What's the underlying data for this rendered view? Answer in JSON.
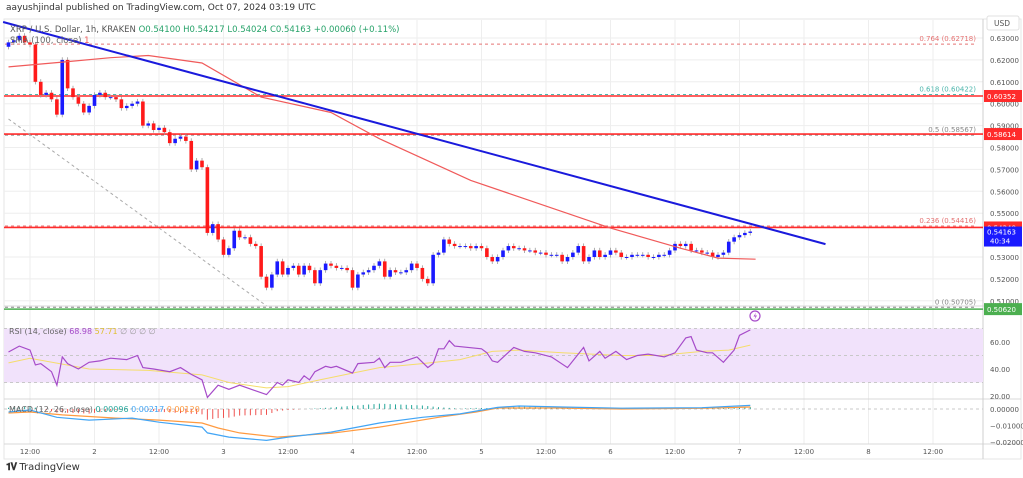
{
  "header": "aayushjindal published on TradingView.com, Oct 07, 2024 03:19 UTC",
  "legend": {
    "symbol": "XRP / U.S. Dollar, 1h, KRAKEN",
    "open": "O0.54100",
    "high": "H0.54217",
    "low": "L0.54024",
    "close": "C0.54163",
    "change": "+0.00060 (+0.11%)",
    "sma_label": "SMA (100, close)",
    "sma_flag": "1"
  },
  "rsi_legend": {
    "label": "RSI (14, close)",
    "rsi": "68.98",
    "ma": "57.71",
    "extra": "∅ ∅ ∅ ∅"
  },
  "macd_legend": {
    "label": "MACD (12, 26, close)",
    "hist": "0.00096",
    "macd": "0.00217",
    "signal": "0.00120"
  },
  "footer": {
    "brand": "TradingView",
    "logo_icon": "tradingview-logo-icon"
  },
  "colors": {
    "up": "#1a1aff",
    "down": "#ff1a1a",
    "sma": "#f05a5a",
    "trendline": "#1a1adc",
    "rsi": "#a64bc9",
    "rsi_ma": "#f5dd6b",
    "macd": "#42a5f5",
    "signal": "#ff9a40",
    "hist_pos": "#26a69a",
    "hist_neg": "#ef5350",
    "band": "#f1e2fb"
  },
  "chart_data": [
    {
      "type": "candlestick",
      "title": "XRP / U.S. Dollar, 1h, KRAKEN",
      "ylabel": "USD",
      "ylim": [
        0.5,
        0.635
      ],
      "interval": "1h",
      "first_candle": "Oct 1 08:00",
      "first_open": 0.626,
      "closes": [
        0.628,
        0.629,
        0.631,
        0.628,
        0.627,
        0.61,
        0.604,
        0.605,
        0.602,
        0.595,
        0.62,
        0.607,
        0.603,
        0.6,
        0.596,
        0.599,
        0.604,
        0.605,
        0.603,
        0.603,
        0.602,
        0.598,
        0.599,
        0.6,
        0.601,
        0.59,
        0.591,
        0.588,
        0.589,
        0.587,
        0.582,
        0.584,
        0.585,
        0.583,
        0.57,
        0.574,
        0.571,
        0.541,
        0.545,
        0.538,
        0.531,
        0.534,
        0.542,
        0.539,
        0.539,
        0.536,
        0.535,
        0.521,
        0.516,
        0.522,
        0.528,
        0.522,
        0.525,
        0.526,
        0.522,
        0.526,
        0.524,
        0.518,
        0.524,
        0.527,
        0.526,
        0.525,
        0.525,
        0.524,
        0.516,
        0.522,
        0.523,
        0.524,
        0.526,
        0.528,
        0.521,
        0.524,
        0.523,
        0.523,
        0.524,
        0.527,
        0.525,
        0.52,
        0.518,
        0.531,
        0.532,
        0.538,
        0.536,
        0.535,
        0.535,
        0.535,
        0.534,
        0.535,
        0.534,
        0.53,
        0.528,
        0.53,
        0.533,
        0.535,
        0.534,
        0.534,
        0.533,
        0.533,
        0.532,
        0.532,
        0.531,
        0.531,
        0.531,
        0.528,
        0.53,
        0.532,
        0.535,
        0.528,
        0.53,
        0.533,
        0.53,
        0.531,
        0.533,
        0.532,
        0.53,
        0.53,
        0.531,
        0.531,
        0.531,
        0.53,
        0.53,
        0.531,
        0.531,
        0.533,
        0.536,
        0.535,
        0.536,
        0.533,
        0.533,
        0.532,
        0.532,
        0.53,
        0.531,
        0.532,
        0.537,
        0.539,
        0.54,
        0.541,
        0.54163
      ],
      "sma100": [
        [
          "Oct 1 08:00",
          0.6168
        ],
        [
          "Oct 1 18:00",
          0.619
        ],
        [
          "Oct 2 03:00",
          0.621
        ],
        [
          "Oct 2 10:00",
          0.622
        ],
        [
          "Oct 2 20:00",
          0.6186
        ],
        [
          "Oct 3 07:00",
          0.603
        ],
        [
          "Oct 3 20:00",
          0.596
        ],
        [
          "Oct 4 05:00",
          0.584
        ],
        [
          "Oct 4 22:00",
          0.565
        ],
        [
          "Oct 6 00:00",
          0.5432
        ],
        [
          "Oct 6 13:00",
          0.534
        ],
        [
          "Oct 6 20:00",
          0.5295
        ],
        [
          "Oct 7 03:00",
          0.529
        ]
      ],
      "trendline": [
        [
          "Oct 1 07:00",
          0.6373
        ],
        [
          "Oct 7 16:00",
          0.5359
        ]
      ],
      "fib_anchor_line": [
        [
          "Oct 1 08:00",
          0.593
        ],
        [
          "Oct 3 08:00",
          0.5077
        ]
      ],
      "fib_levels": [
        {
          "label": "0.764 (0.62718)",
          "price": 0.62718,
          "color": "#e57373"
        },
        {
          "label": "0.618 (0.60422)",
          "price": 0.60422,
          "color": "#4db6ac"
        },
        {
          "label": "0.5 (0.58567)",
          "price": 0.58567,
          "color": "#888888"
        },
        {
          "label": "0.236 (0.54416)",
          "price": 0.54416,
          "color": "#e57373"
        },
        {
          "label": "0 (0.50705)",
          "price": 0.50705,
          "color": "#888888"
        }
      ],
      "horizontal_levels": [
        {
          "label": "0.60352",
          "price": 0.60352,
          "color": "#ff2b2b"
        },
        {
          "label": "0.58614",
          "price": 0.58614,
          "color": "#ff2b2b"
        },
        {
          "label": "0.54348",
          "price": 0.54348,
          "color": "#ff2b2b"
        },
        {
          "label": "0.50620",
          "price": 0.5062,
          "color": "#4caf50"
        }
      ],
      "last_price": {
        "label": "0.54163",
        "countdown": "40:34",
        "price": 0.54163,
        "color": "#1a1aff"
      },
      "y_ticks": [
        "0.63000",
        "0.62000",
        "0.61000",
        "0.60000",
        "0.59000",
        "0.58000",
        "0.57000",
        "0.56000",
        "0.55000",
        "0.53000",
        "0.52000",
        "0.51000"
      ],
      "x_ticks": [
        {
          "label": "12:00",
          "t": "Oct 1 12:00"
        },
        {
          "label": "2",
          "t": "Oct 2 00:00"
        },
        {
          "label": "12:00",
          "t": "Oct 2 12:00"
        },
        {
          "label": "3",
          "t": "Oct 3 00:00"
        },
        {
          "label": "12:00",
          "t": "Oct 3 12:00"
        },
        {
          "label": "4",
          "t": "Oct 4 00:00"
        },
        {
          "label": "12:00",
          "t": "Oct 4 12:00"
        },
        {
          "label": "5",
          "t": "Oct 5 00:00"
        },
        {
          "label": "12:00",
          "t": "Oct 5 12:00"
        },
        {
          "label": "6",
          "t": "Oct 6 00:00"
        },
        {
          "label": "12:00",
          "t": "Oct 6 12:00"
        },
        {
          "label": "7",
          "t": "Oct 7 00:00"
        },
        {
          "label": "12:00",
          "t": "Oct 7 12:00"
        },
        {
          "label": "8",
          "t": "Oct 8 00:00"
        },
        {
          "label": "12:00",
          "t": "Oct 8 12:00"
        }
      ]
    },
    {
      "type": "line",
      "title": "RSI (14, close)",
      "ylim": [
        20,
        75
      ],
      "y_ticks": [
        "60.00",
        "40.00",
        "20.00"
      ],
      "band": [
        30,
        70
      ],
      "rsi": [
        [
          "Oct 1 08:00",
          52.6
        ],
        [
          "Oct 1 10:00",
          57
        ],
        [
          "Oct 1 12:00",
          54
        ],
        [
          "Oct 1 13:00",
          43
        ],
        [
          "Oct 1 14:00",
          44
        ],
        [
          "Oct 1 16:00",
          38
        ],
        [
          "Oct 1 17:00",
          28
        ],
        [
          "Oct 1 18:00",
          49
        ],
        [
          "Oct 1 19:00",
          44
        ],
        [
          "Oct 1 21:00",
          40
        ],
        [
          "Oct 1 23:00",
          45
        ],
        [
          "Oct 2 01:00",
          46
        ],
        [
          "Oct 2 03:00",
          48
        ],
        [
          "Oct 2 06:00",
          47
        ],
        [
          "Oct 2 08:00",
          50
        ],
        [
          "Oct 2 09:00",
          41
        ],
        [
          "Oct 2 11:00",
          40
        ],
        [
          "Oct 2 14:00",
          38
        ],
        [
          "Oct 2 16:00",
          41
        ],
        [
          "Oct 2 18:00",
          36
        ],
        [
          "Oct 2 20:00",
          32
        ],
        [
          "Oct 2 21:00",
          19
        ],
        [
          "Oct 2 23:00",
          28
        ],
        [
          "Oct 3 01:00",
          25
        ],
        [
          "Oct 3 03:00",
          28
        ],
        [
          "Oct 3 08:00",
          21
        ],
        [
          "Oct 3 10:00",
          30
        ],
        [
          "Oct 3 11:00",
          28
        ],
        [
          "Oct 3 12:00",
          32
        ],
        [
          "Oct 3 14:00",
          30
        ],
        [
          "Oct 3 15:00",
          35
        ],
        [
          "Oct 3 16:00",
          32
        ],
        [
          "Oct 3 17:00",
          38
        ],
        [
          "Oct 3 19:00",
          42
        ],
        [
          "Oct 3 20:00",
          41
        ],
        [
          "Oct 3 21:00",
          42
        ],
        [
          "Oct 4 00:00",
          37
        ],
        [
          "Oct 4 01:00",
          44
        ],
        [
          "Oct 4 04:00",
          45
        ],
        [
          "Oct 4 05:00",
          48
        ],
        [
          "Oct 4 06:00",
          41
        ],
        [
          "Oct 4 07:00",
          45
        ],
        [
          "Oct 4 09:00",
          45
        ],
        [
          "Oct 4 12:00",
          49
        ],
        [
          "Oct 4 14:00",
          41
        ],
        [
          "Oct 4 15:00",
          44
        ],
        [
          "Oct 4 16:00",
          55
        ],
        [
          "Oct 4 17:00",
          55
        ],
        [
          "Oct 4 18:00",
          61
        ],
        [
          "Oct 4 19:00",
          57
        ],
        [
          "Oct 5 00:00",
          55
        ],
        [
          "Oct 5 01:00",
          52
        ],
        [
          "Oct 5 02:00",
          46
        ],
        [
          "Oct 5 03:00",
          45
        ],
        [
          "Oct 5 06:00",
          56
        ],
        [
          "Oct 5 08:00",
          53
        ],
        [
          "Oct 5 10:00",
          52
        ],
        [
          "Oct 5 13:00",
          49
        ],
        [
          "Oct 5 16:00",
          41
        ],
        [
          "Oct 5 19:00",
          56
        ],
        [
          "Oct 5 20:00",
          46
        ],
        [
          "Oct 5 22:00",
          53
        ],
        [
          "Oct 5 23:00",
          48
        ],
        [
          "Oct 6 01:00",
          53
        ],
        [
          "Oct 6 03:00",
          47
        ],
        [
          "Oct 6 05:00",
          50
        ],
        [
          "Oct 6 07:00",
          51
        ],
        [
          "Oct 6 10:00",
          49
        ],
        [
          "Oct 6 12:00",
          52
        ],
        [
          "Oct 6 14:00",
          63
        ],
        [
          "Oct 6 15:00",
          64
        ],
        [
          "Oct 6 16:00",
          54
        ],
        [
          "Oct 6 18:00",
          52
        ],
        [
          "Oct 6 19:00",
          52
        ],
        [
          "Oct 6 21:00",
          45
        ],
        [
          "Oct 6 23:00",
          54
        ],
        [
          "Oct 7 00:00",
          65
        ],
        [
          "Oct 7 02:00",
          68.98
        ]
      ],
      "rsi_ma": [
        [
          "Oct 1 08:00",
          44.5
        ],
        [
          "Oct 1 12:00",
          48
        ],
        [
          "Oct 1 23:00",
          40
        ],
        [
          "Oct 2 10:00",
          39
        ],
        [
          "Oct 2 20:00",
          35.6
        ],
        [
          "Oct 3 01:00",
          30
        ],
        [
          "Oct 3 08:00",
          26
        ],
        [
          "Oct 3 12:00",
          27
        ],
        [
          "Oct 3 18:00",
          32
        ],
        [
          "Oct 4 00:00",
          37
        ],
        [
          "Oct 4 05:00",
          41
        ],
        [
          "Oct 4 13:00",
          44
        ],
        [
          "Oct 4 20:00",
          47
        ],
        [
          "Oct 5 02:00",
          53
        ],
        [
          "Oct 5 07:00",
          54
        ],
        [
          "Oct 5 15:00",
          52
        ],
        [
          "Oct 6 02:00",
          50
        ],
        [
          "Oct 6 09:00",
          50
        ],
        [
          "Oct 6 17:00",
          53
        ],
        [
          "Oct 6 22:00",
          54
        ],
        [
          "Oct 7 02:00",
          57.71
        ]
      ]
    },
    {
      "type": "line",
      "title": "MACD (12, 26, close)",
      "ylim": [
        -0.022,
        0.005
      ],
      "y_ticks": [
        "0.00000",
        "−0.01000",
        "−0.02000"
      ],
      "macd": [
        [
          "Oct 1 08:00",
          -0.0018
        ],
        [
          "Oct 1 12:00",
          -0.0006
        ],
        [
          "Oct 1 17:00",
          -0.005
        ],
        [
          "Oct 1 23:00",
          -0.0067
        ],
        [
          "Oct 2 07:00",
          -0.0055
        ],
        [
          "Oct 2 12:00",
          -0.008
        ],
        [
          "Oct 2 20:00",
          -0.011
        ],
        [
          "Oct 2 21:00",
          -0.0145
        ],
        [
          "Oct 3 01:00",
          -0.017
        ],
        [
          "Oct 3 08:00",
          -0.019
        ],
        [
          "Oct 3 12:00",
          -0.017
        ],
        [
          "Oct 3 20:00",
          -0.014
        ],
        [
          "Oct 4 05:00",
          -0.0085
        ],
        [
          "Oct 4 13:00",
          -0.005
        ],
        [
          "Oct 4 20:00",
          -0.003
        ],
        [
          "Oct 5 03:00",
          0.001
        ],
        [
          "Oct 5 07:00",
          0.0018
        ],
        [
          "Oct 5 15:00",
          0.0012
        ],
        [
          "Oct 6 02:00",
          0.0005
        ],
        [
          "Oct 6 17:00",
          0.0008
        ],
        [
          "Oct 7 02:00",
          0.00217
        ]
      ],
      "signal": [
        [
          "Oct 1 08:00",
          -0.0024
        ],
        [
          "Oct 1 12:00",
          -0.0018
        ],
        [
          "Oct 1 18:00",
          -0.0036
        ],
        [
          "Oct 2 04:00",
          -0.0055
        ],
        [
          "Oct 2 12:00",
          -0.0067
        ],
        [
          "Oct 2 20:00",
          -0.0085
        ],
        [
          "Oct 2 23:00",
          -0.0115
        ],
        [
          "Oct 3 03:00",
          -0.0145
        ],
        [
          "Oct 3 10:00",
          -0.017
        ],
        [
          "Oct 3 20:00",
          -0.0147
        ],
        [
          "Oct 4 05:00",
          -0.011
        ],
        [
          "Oct 4 16:00",
          -0.005
        ],
        [
          "Oct 4 23:00",
          -0.0018
        ],
        [
          "Oct 5 03:00",
          0.0006
        ],
        [
          "Oct 5 14:00",
          0.0006
        ],
        [
          "Oct 6 02:00",
          0.0
        ],
        [
          "Oct 6 17:00",
          0.0004
        ],
        [
          "Oct 7 02:00",
          0.0012
        ]
      ]
    }
  ]
}
